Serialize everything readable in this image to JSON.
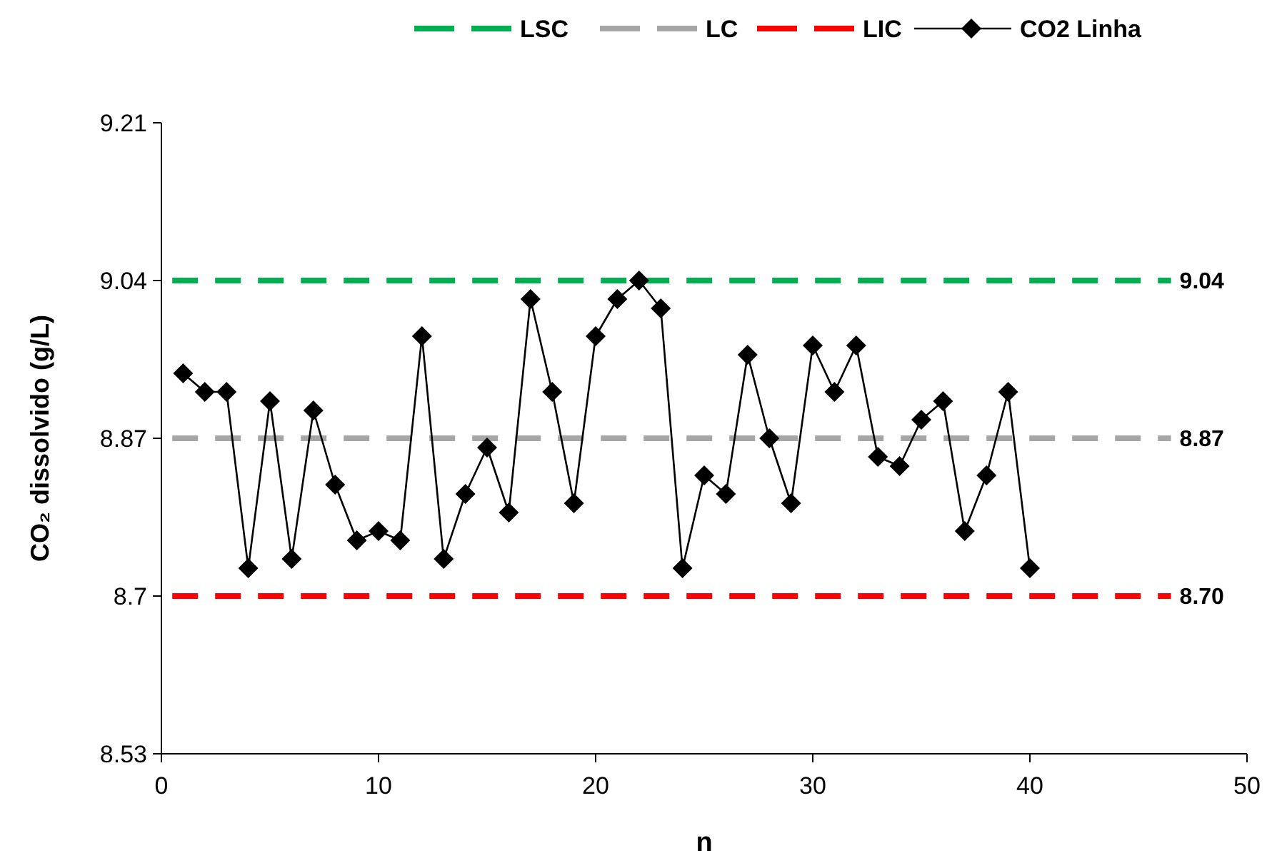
{
  "chart_data": {
    "type": "line",
    "xlabel": "n",
    "ylabel": "CO₂ dissolvido (g/L)",
    "xlim": [
      0,
      50
    ],
    "xticks": [
      0,
      10,
      20,
      30,
      40,
      50
    ],
    "ylim": [
      8.53,
      9.21
    ],
    "yticks": [
      8.53,
      8.7,
      8.87,
      9.04,
      9.21
    ],
    "grid": false,
    "legend": "top",
    "series": [
      {
        "name": "LSC",
        "color": "#00b050",
        "line_style": "dashed",
        "marker": "none",
        "x": [
          0.5,
          46.5
        ],
        "values": [
          9.04,
          9.04
        ],
        "value_labels": [
          null,
          "9.04"
        ]
      },
      {
        "name": "LC",
        "color": "#a6a6a6",
        "line_style": "dashed",
        "marker": "none",
        "x": [
          0.5,
          46.5
        ],
        "values": [
          8.87,
          8.87
        ],
        "value_labels": [
          null,
          "8.87"
        ]
      },
      {
        "name": "LIC",
        "color": "#ff0000",
        "line_style": "dashed",
        "marker": "none",
        "x": [
          0.5,
          46.5
        ],
        "values": [
          8.7,
          8.7
        ],
        "value_labels": [
          null,
          "8.70"
        ]
      },
      {
        "name": "CO2 Linha",
        "color": "#000000",
        "line_style": "solid",
        "marker": "diamond",
        "x": [
          1,
          2,
          3,
          4,
          5,
          6,
          7,
          8,
          9,
          10,
          11,
          12,
          13,
          14,
          15,
          16,
          17,
          18,
          19,
          20,
          21,
          22,
          23,
          24,
          25,
          26,
          27,
          28,
          29,
          30,
          31,
          32,
          33,
          34,
          35,
          36,
          37,
          38,
          39,
          40
        ],
        "values": [
          8.94,
          8.92,
          8.92,
          8.73,
          8.91,
          8.74,
          8.9,
          8.82,
          8.76,
          8.77,
          8.76,
          8.98,
          8.74,
          8.81,
          8.86,
          8.79,
          9.02,
          8.92,
          8.8,
          8.98,
          9.02,
          9.04,
          9.01,
          8.73,
          8.83,
          8.81,
          8.96,
          8.87,
          8.8,
          8.97,
          8.92,
          8.97,
          8.85,
          8.84,
          8.89,
          8.91,
          8.77,
          8.83,
          8.92,
          8.73
        ]
      }
    ]
  }
}
